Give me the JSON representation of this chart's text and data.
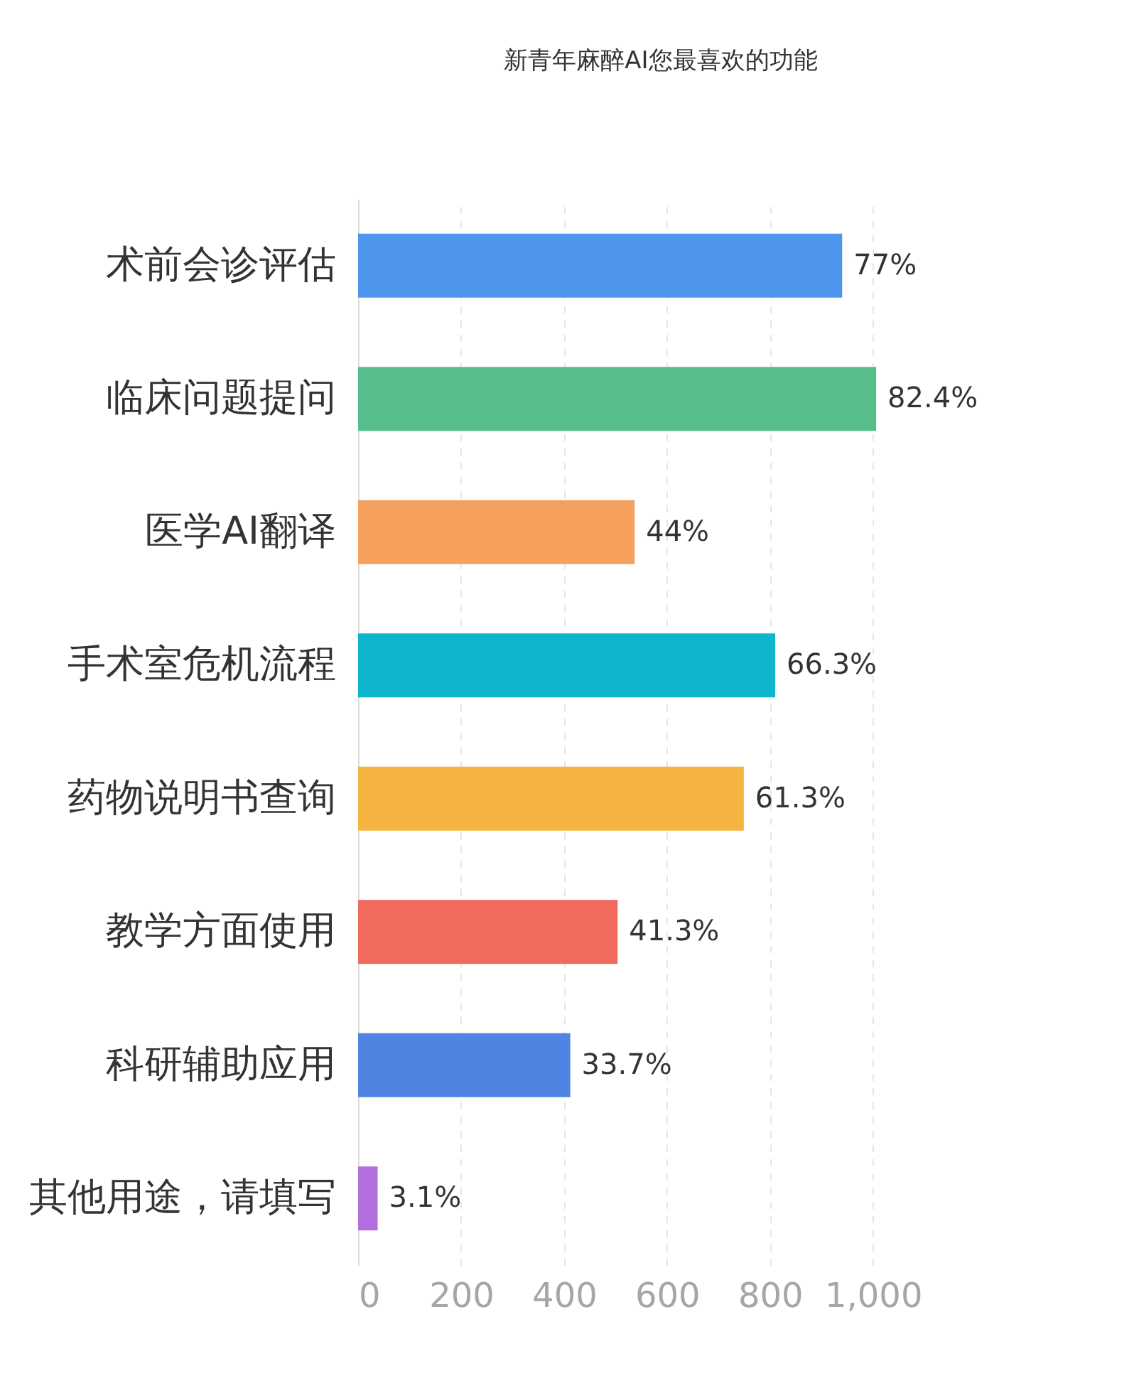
{
  "chart_data": {
    "type": "bar",
    "orientation": "horizontal",
    "title": "新青年麻醉AI您最喜欢的功能",
    "categories": [
      "术前会诊评估",
      "临床问题提问",
      "医学AI翻译",
      "手术室危机流程",
      "药物说明书查询",
      "教学方面使用",
      "科研辅助应用",
      "其他用途，请填写"
    ],
    "values": [
      940,
      1006,
      537,
      810,
      749,
      504,
      412,
      38
    ],
    "annotations": [
      {
        "text": "77%",
        "x": 940,
        "y": "术前会诊评估"
      },
      {
        "text": "82.4%",
        "x": 1006,
        "y": "临床问题提问"
      },
      {
        "text": "44%",
        "x": 537,
        "y": "医学AI翻译"
      },
      {
        "text": "66.3%",
        "x": 810,
        "y": "手术室危机流程"
      },
      {
        "text": "61.3%",
        "x": 749,
        "y": "药物说明书查询"
      },
      {
        "text": "41.3%",
        "x": 504,
        "y": "教学方面使用"
      },
      {
        "text": "33.7%",
        "x": 412,
        "y": "科研辅助应用"
      },
      {
        "text": "3.1%",
        "x": 38,
        "y": "其他用途，请填写"
      }
    ],
    "colors": [
      "#4e95ee",
      "#57bd8a",
      "#f5a05c",
      "#0db5cd",
      "#f4b43f",
      "#f06a5e",
      "#4f84e3",
      "#b36fe0"
    ],
    "xlim": [
      0,
      1010
    ],
    "xticks": [
      0,
      200,
      400,
      600,
      800,
      {
        "value": 1000,
        "label": "1,000"
      }
    ],
    "grid": "x"
  }
}
